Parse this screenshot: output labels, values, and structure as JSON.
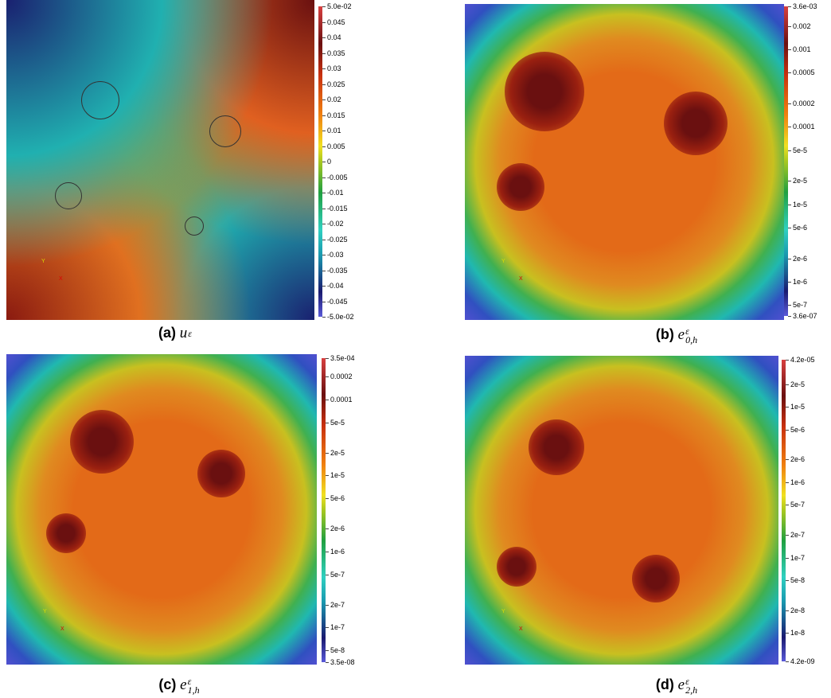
{
  "panels": [
    {
      "label": "(a)",
      "symbol": "u",
      "sup": "ε",
      "sub": null,
      "scale": "linear",
      "axes": [
        "Y",
        "X"
      ],
      "ticks": [
        "5.0e-02",
        "0.045",
        "0.04",
        "0.035",
        "0.03",
        "0.025",
        "0.02",
        "0.015",
        "0.01",
        "0.005",
        "0",
        "-0.005",
        "-0.01",
        "-0.015",
        "-0.02",
        "-0.025",
        "-0.03",
        "-0.035",
        "-0.04",
        "-0.045",
        "-5.0e-02"
      ]
    },
    {
      "label": "(b)",
      "symbol": "e",
      "sup": "ε",
      "sub": "0,h",
      "scale": "log",
      "axes": [
        "Y",
        "X"
      ],
      "ticks": [
        "3.6e-03",
        "0.002",
        "0.001",
        "0.0005",
        "0.0002",
        "0.0001",
        "5e-5",
        "2e-5",
        "1e-5",
        "5e-6",
        "2e-6",
        "1e-6",
        "5e-7",
        "3.6e-07"
      ]
    },
    {
      "label": "(c)",
      "symbol": "e",
      "sup": "ε",
      "sub": "1,h",
      "scale": "log",
      "axes": [
        "Y",
        "X"
      ],
      "ticks": [
        "3.5e-04",
        "0.0002",
        "0.0001",
        "5e-5",
        "2e-5",
        "1e-5",
        "5e-6",
        "2e-6",
        "1e-6",
        "5e-7",
        "2e-7",
        "1e-7",
        "5e-8",
        "3.5e-08"
      ]
    },
    {
      "label": "(d)",
      "symbol": "e",
      "sup": "ε",
      "sub": "2,h",
      "scale": "log",
      "axes": [
        "Y",
        "X"
      ],
      "ticks": [
        "4.2e-05",
        "2e-5",
        "1e-5",
        "5e-6",
        "2e-6",
        "1e-6",
        "5e-7",
        "2e-7",
        "1e-7",
        "5e-8",
        "2e-8",
        "1e-8",
        "4.2e-09"
      ]
    }
  ]
}
